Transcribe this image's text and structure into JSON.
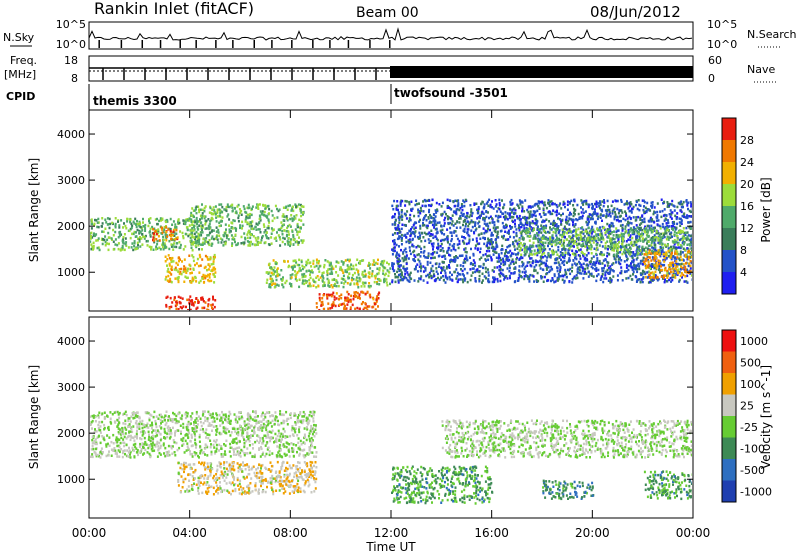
{
  "header": {
    "station": "Rankin Inlet (fitACF)",
    "beam": "Beam 00",
    "date": "08/Jun/2012"
  },
  "noise_panel": {
    "left_label": "N.Sky",
    "left_ticks": [
      "10^5",
      "10^0"
    ],
    "right_label": "N.Search",
    "right_ticks": [
      "10^5",
      "10^0"
    ]
  },
  "freq_panel": {
    "left_label_1": "Freq.",
    "left_label_2": "[MHz]",
    "left_ticks": [
      "18",
      "8"
    ],
    "right_label": "Nave",
    "right_ticks": [
      "60",
      "0"
    ]
  },
  "cpid_panel": {
    "label": "CPID",
    "mode_1": "themis 3300",
    "mode_2": "twofsound -3501"
  },
  "power_panel": {
    "ylabel": "Slant Range [km]",
    "yticks": [
      "4000",
      "3000",
      "2000",
      "1000"
    ],
    "colorbar_label": "Power [dB]",
    "colorbar_ticks": [
      "28",
      "24",
      "20",
      "16",
      "12",
      "8",
      "4"
    ]
  },
  "velocity_panel": {
    "ylabel": "Slant Range [km]",
    "yticks": [
      "4000",
      "3000",
      "2000",
      "1000"
    ],
    "colorbar_label": "Velocity [m s^-1]",
    "colorbar_ticks": [
      "1000",
      "500",
      "100",
      "25",
      "-25",
      "-100",
      "-500",
      "-1000"
    ]
  },
  "xaxis": {
    "label": "Time UT",
    "ticks": [
      "00:00",
      "04:00",
      "08:00",
      "12:00",
      "16:00",
      "20:00",
      "00:00"
    ]
  },
  "colors": {
    "power_scale": [
      "#1f1ff0",
      "#2352c8",
      "#3a7d5a",
      "#4faa6a",
      "#9cdc3a",
      "#f2b000",
      "#f07800",
      "#e81e10"
    ],
    "velocity_scale": [
      "#1f3fb0",
      "#2e6fc0",
      "#3d8a55",
      "#66cc33",
      "#c8c8c0",
      "#f0a000",
      "#f06010",
      "#ee1010"
    ]
  },
  "chart_data": [
    {
      "type": "heatmap",
      "title": "Power",
      "xlabel": "Time UT",
      "ylabel": "Slant Range [km]",
      "xlim_hours": [
        0,
        24
      ],
      "ylim": [
        180,
        4500
      ],
      "zlim": [
        0,
        30
      ],
      "colorbar_label": "Power [dB]",
      "regions": [
        {
          "t": [
            0.0,
            4.5
          ],
          "r": [
            1500,
            2200
          ],
          "value": 14
        },
        {
          "t": [
            2.5,
            3.5
          ],
          "r": [
            1700,
            2000
          ],
          "value": 24
        },
        {
          "t": [
            3.0,
            5.0
          ],
          "r": [
            200,
            500
          ],
          "value": 28
        },
        {
          "t": [
            3.0,
            5.0
          ],
          "r": [
            800,
            1400
          ],
          "value": 20
        },
        {
          "t": [
            4.0,
            8.5
          ],
          "r": [
            1600,
            2500
          ],
          "value": 14
        },
        {
          "t": [
            7.0,
            12.0
          ],
          "r": [
            700,
            1300
          ],
          "value": 16
        },
        {
          "t": [
            9.0,
            11.5
          ],
          "r": [
            200,
            600
          ],
          "value": 26
        },
        {
          "t": [
            12.0,
            24.0
          ],
          "r": [
            800,
            2600
          ],
          "value": 6
        },
        {
          "t": [
            17.0,
            24.0
          ],
          "r": [
            1400,
            2000
          ],
          "value": 14
        },
        {
          "t": [
            22.0,
            24.0
          ],
          "r": [
            900,
            1500
          ],
          "value": 22
        }
      ]
    },
    {
      "type": "heatmap",
      "title": "Velocity",
      "xlabel": "Time UT",
      "ylabel": "Slant Range [km]",
      "xlim_hours": [
        0,
        24
      ],
      "ylim": [
        180,
        4500
      ],
      "zlim": [
        -1000,
        1000
      ],
      "colorbar_label": "Velocity [m s^-1]",
      "regions": [
        {
          "t": [
            0.0,
            9.0
          ],
          "r": [
            1500,
            2500
          ],
          "value": 0
        },
        {
          "t": [
            3.5,
            9.0
          ],
          "r": [
            700,
            1400
          ],
          "value": 200
        },
        {
          "t": [
            12.0,
            16.0
          ],
          "r": [
            500,
            1300
          ],
          "value": -300
        },
        {
          "t": [
            14.0,
            24.0
          ],
          "r": [
            1500,
            2300
          ],
          "value": 0
        },
        {
          "t": [
            18.0,
            20.0
          ],
          "r": [
            600,
            1000
          ],
          "value": -400
        },
        {
          "t": [
            22.0,
            24.0
          ],
          "r": [
            600,
            1200
          ],
          "value": -300
        }
      ]
    }
  ]
}
